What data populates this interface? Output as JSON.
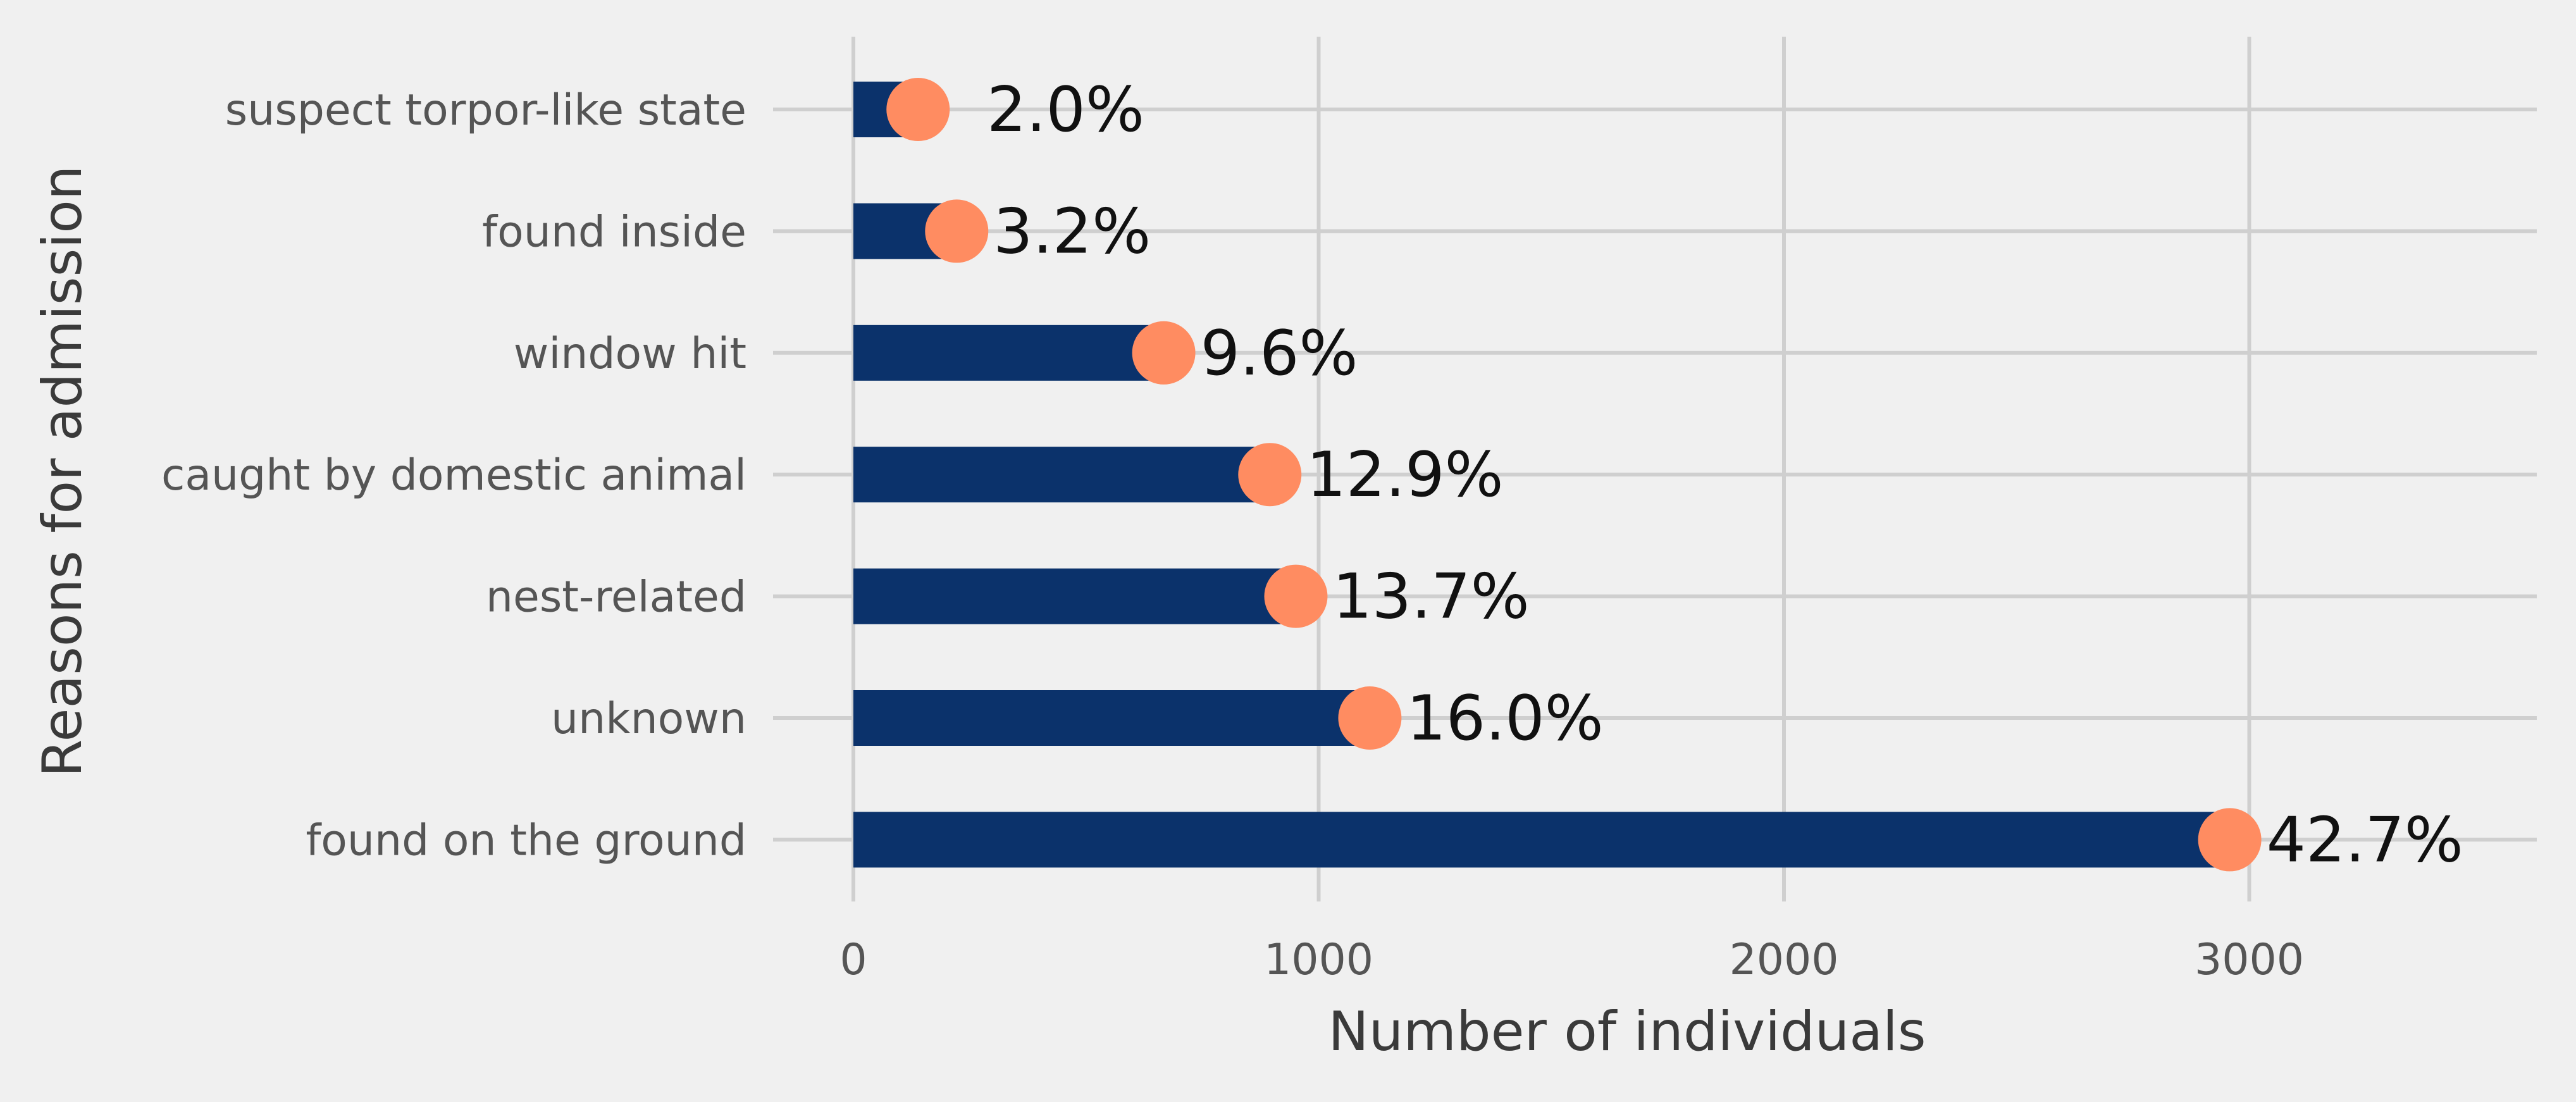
{
  "chart_data": {
    "type": "bar",
    "orientation": "horizontal",
    "xlabel": "Number of individuals",
    "ylabel": "Reasons for admission",
    "xlim": [
      -180,
      3620
    ],
    "xticks": [
      0,
      1000,
      2000,
      3000
    ],
    "xtick_labels": [
      "0",
      "1000",
      "2000",
      "3000"
    ],
    "grid": true,
    "categories": [
      "suspect torpor-like state",
      "found inside",
      "window hit",
      "caught by domestic animal",
      "nest-related",
      "unknown",
      "found on the ground"
    ],
    "values": [
      139,
      222,
      667,
      895,
      951,
      1110,
      2958
    ],
    "percent_labels": [
      "2.0%",
      "3.2%",
      "9.6%",
      "12.9%",
      "13.7%",
      "16.0%",
      "42.7%"
    ],
    "colors": {
      "bar": "#0b326b",
      "marker": "#ff8c61",
      "background": "#f0f0f0",
      "grid": "#cfcfcf"
    }
  }
}
